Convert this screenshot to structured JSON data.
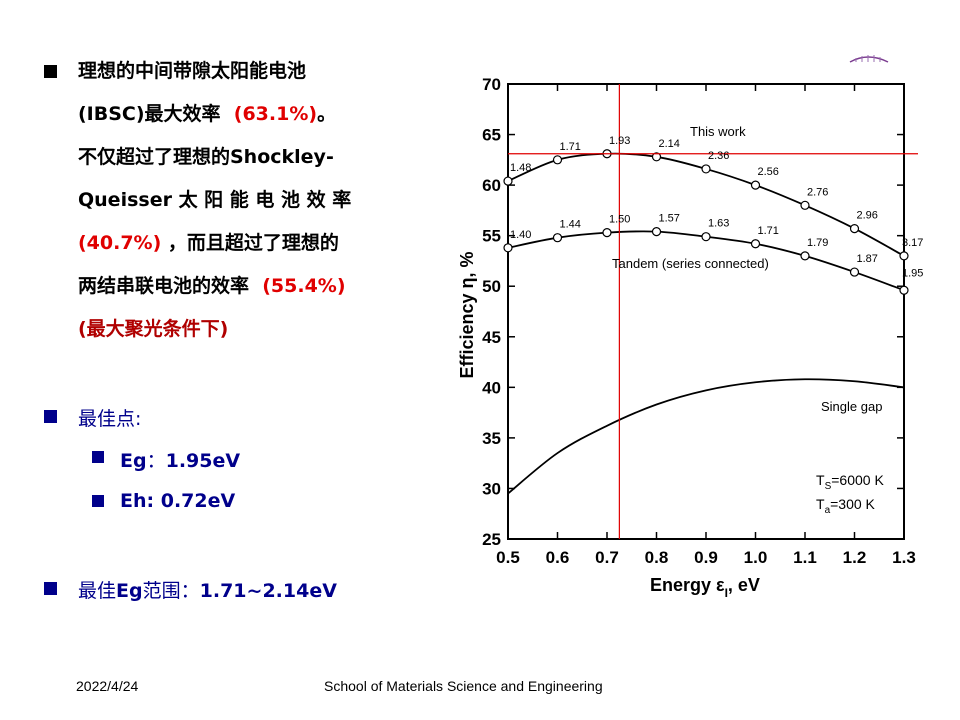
{
  "slide": {
    "bullet1": {
      "line1": "理想的中间带隙太阳能电池",
      "line2_a": "(IBSC)最大效率",
      "line2_b": "(63.1%)",
      "line2_c": "。",
      "line3": "不仅超过了理想的Shockley-",
      "line4": "Queisser 太 阳 能 电 池 效 率",
      "line5_a": "(40.7%)",
      "line5_b": "，而且超过了理想的",
      "line6_a": "两结串联电池的效率",
      "line6_b": "(55.4%)",
      "line7": "(最大聚光条件下)"
    },
    "bullet2": {
      "label": "最佳点:"
    },
    "sub1": {
      "label": "Eg",
      "sep": "：",
      "value": "1.95eV"
    },
    "sub2": {
      "label": "Eh: 0.72eV"
    },
    "bullet3": {
      "label_a": "最佳",
      "label_b": "Eg",
      "label_c": "范围",
      "sep": "：",
      "value": "1.71~2.14eV"
    }
  },
  "footer": {
    "date": "2022/4/24",
    "org": "School of Materials Science and Engineering"
  },
  "chart_data": {
    "type": "line",
    "xlabel": "Energy ε",
    "xlabel_sub": "I",
    "xlabel_unit": ", eV",
    "ylabel": "Efficiency η, %",
    "xlim": [
      0.5,
      1.3
    ],
    "ylim": [
      25,
      70
    ],
    "xticks": [
      "0.5",
      "0.6",
      "0.7",
      "0.8",
      "0.9",
      "1.0",
      "1.1",
      "1.2",
      "1.3"
    ],
    "yticks": [
      "25",
      "30",
      "35",
      "40",
      "45",
      "50",
      "55",
      "60",
      "65",
      "70"
    ],
    "series": [
      {
        "name": "This work",
        "x": [
          0.5,
          0.6,
          0.7,
          0.8,
          0.9,
          1.0,
          1.1,
          1.2,
          1.3
        ],
        "y": [
          60.4,
          62.5,
          63.1,
          62.8,
          61.6,
          60.0,
          58.0,
          55.7,
          53.0
        ],
        "labels": [
          "1.48",
          "1.71",
          "1.93",
          "2.14",
          "2.36",
          "2.56",
          "2.76",
          "2.96",
          "3.17"
        ]
      },
      {
        "name": "Tandem (series connected)",
        "x": [
          0.5,
          0.6,
          0.7,
          0.8,
          0.9,
          1.0,
          1.1,
          1.2,
          1.3
        ],
        "y": [
          53.8,
          54.8,
          55.3,
          55.4,
          54.9,
          54.2,
          53.0,
          51.4,
          49.6
        ],
        "labels": [
          "1.40",
          "1.44",
          "1.50",
          "1.57",
          "1.63",
          "1.71",
          "1.79",
          "1.87",
          "1.95"
        ]
      },
      {
        "name": "Single gap",
        "x": [
          0.5,
          0.6,
          0.7,
          0.8,
          0.9,
          1.0,
          1.1,
          1.2,
          1.3
        ],
        "y": [
          29.5,
          33.5,
          36.2,
          38.3,
          39.7,
          40.5,
          40.8,
          40.6,
          40.0
        ],
        "labels": []
      }
    ],
    "reference_lines": {
      "vertical_x": 0.725,
      "horizontal_y": 63.1,
      "color": "#e00000"
    },
    "annotations": [
      "T",
      "S",
      "=6000 K",
      "T",
      "a",
      "=300 K"
    ]
  }
}
